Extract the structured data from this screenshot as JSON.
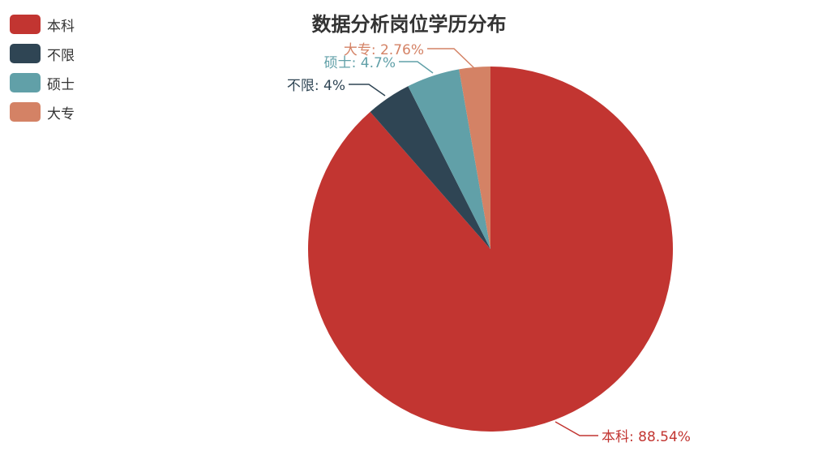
{
  "chart_data": {
    "type": "pie",
    "title": "数据分析岗位学历分布",
    "categories": [
      "本科",
      "不限",
      "硕士",
      "大专"
    ],
    "values": [
      88.54,
      4,
      4.7,
      2.76
    ],
    "labels": [
      "本科: 88.54%",
      "不限: 4%",
      "硕士: 4.7%",
      "大专: 2.76%"
    ],
    "colors": [
      "#c23531",
      "#2f4554",
      "#61a0a8",
      "#d48265"
    ],
    "legend_position": "top-left"
  }
}
